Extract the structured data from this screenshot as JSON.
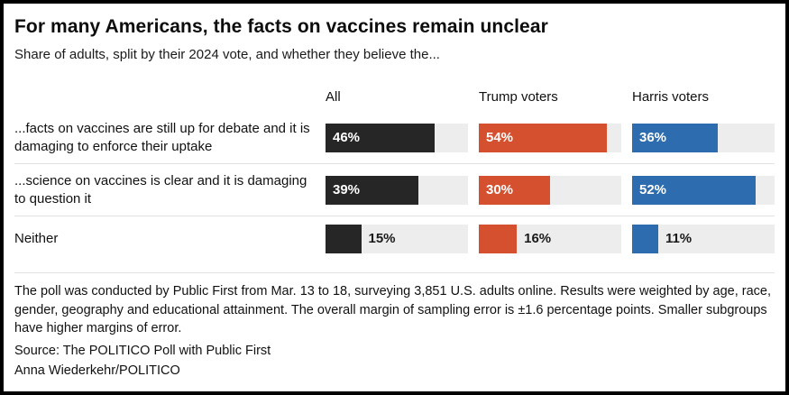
{
  "header": {
    "title": "For many Americans, the facts on vaccines remain unclear",
    "subtitle": "Share of adults, split by their 2024 vote, and whether they believe the..."
  },
  "chart_data": {
    "type": "bar",
    "groups": [
      "All",
      "Trump voters",
      "Harris voters"
    ],
    "categories": [
      "...facts on vaccines are still up for debate and it is damaging to enforce their uptake",
      "...science on vaccines is clear and it is damaging to question it",
      "Neither"
    ],
    "series": [
      {
        "name": "All",
        "values": [
          46,
          39,
          15
        ]
      },
      {
        "name": "Trump voters",
        "values": [
          54,
          30,
          16
        ]
      },
      {
        "name": "Harris voters",
        "values": [
          36,
          52,
          11
        ]
      }
    ],
    "rows": [
      {
        "label": "...facts on vaccines are still up for debate and it is damaging to enforce their uptake",
        "values": [
          46,
          54,
          36
        ]
      },
      {
        "label": "...science on vaccines is clear and it is damaging to question it",
        "values": [
          39,
          30,
          52
        ]
      },
      {
        "label": "Neither",
        "values": [
          15,
          16,
          11
        ]
      }
    ],
    "value_suffix": "%",
    "scale_max": 60,
    "colors": [
      "#262626",
      "#d4502e",
      "#2d6cae"
    ],
    "track_color": "#ededed",
    "title": "For many Americans, the facts on vaccines remain unclear",
    "subtitle": "Share of adults, split by their 2024 vote, and whether they believe the...",
    "legend_position": "top-column-headers",
    "grid": false
  },
  "footer": {
    "methodology": "The poll was conducted by Public First from Mar. 13 to 18, surveying 3,851 U.S. adults online. Results were weighted by age, race, gender, geography and educational attainment. The overall margin of sampling error is ±1.6 percentage points. Smaller subgroups have higher margins of error.",
    "source": "Source: The POLITICO Poll with Public First",
    "credit": "Anna Wiederkehr/POLITICO"
  }
}
